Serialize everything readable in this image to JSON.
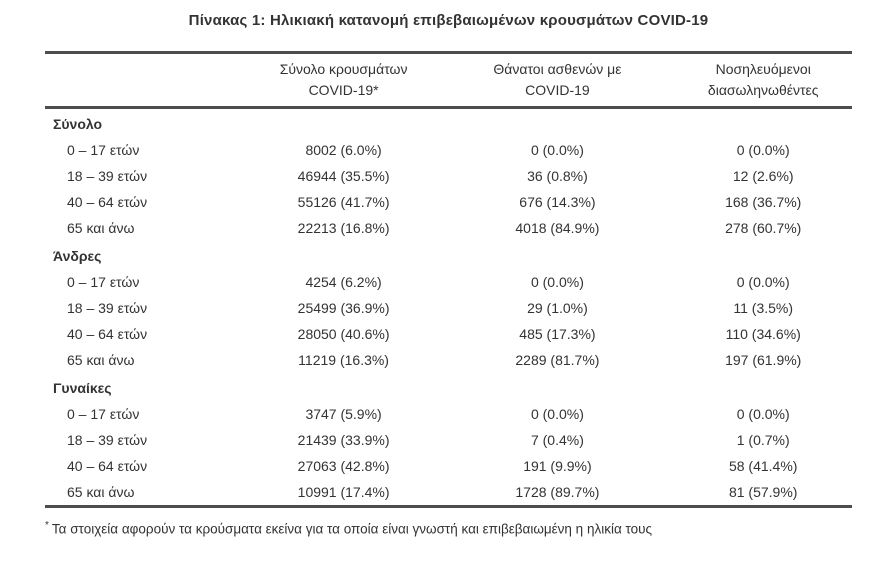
{
  "colors": {
    "text": "#333333",
    "rule": "#4d4d4d"
  },
  "title": "Πίνακας 1: Ηλικιακή κατανομή επιβεβαιωμένων κρουσμάτων COVID-19",
  "table": {
    "column_headers": [
      {
        "line1": "Σύνολο κρουσμάτων",
        "line2": "COVID-19*"
      },
      {
        "line1": "Θάνατοι ασθενών με",
        "line2": "COVID-19"
      },
      {
        "line1": "Νοσηλευόμενοι",
        "line2": "διασωληνωθέντες"
      }
    ],
    "sections": [
      {
        "name": "Σύνολο",
        "rows": [
          {
            "label": "0 – 17 ετών",
            "cases": "8002 (6.0%)",
            "deaths": "0 (0.0%)",
            "intubated": "0 (0.0%)"
          },
          {
            "label": "18 – 39 ετών",
            "cases": "46944 (35.5%)",
            "deaths": "36 (0.8%)",
            "intubated": "12 (2.6%)"
          },
          {
            "label": "40 – 64 ετών",
            "cases": "55126 (41.7%)",
            "deaths": "676 (14.3%)",
            "intubated": "168 (36.7%)"
          },
          {
            "label": "65 και άνω",
            "cases": "22213 (16.8%)",
            "deaths": "4018 (84.9%)",
            "intubated": "278 (60.7%)"
          }
        ]
      },
      {
        "name": "Άνδρες",
        "rows": [
          {
            "label": "0 – 17 ετών",
            "cases": "4254 (6.2%)",
            "deaths": "0 (0.0%)",
            "intubated": "0 (0.0%)"
          },
          {
            "label": "18 – 39 ετών",
            "cases": "25499 (36.9%)",
            "deaths": "29 (1.0%)",
            "intubated": "11 (3.5%)"
          },
          {
            "label": "40 – 64 ετών",
            "cases": "28050 (40.6%)",
            "deaths": "485 (17.3%)",
            "intubated": "110 (34.6%)"
          },
          {
            "label": "65 και άνω",
            "cases": "11219 (16.3%)",
            "deaths": "2289 (81.7%)",
            "intubated": "197 (61.9%)"
          }
        ]
      },
      {
        "name": "Γυναίκες",
        "rows": [
          {
            "label": "0 – 17 ετών",
            "cases": "3747 (5.9%)",
            "deaths": "0 (0.0%)",
            "intubated": "0 (0.0%)"
          },
          {
            "label": "18 – 39 ετών",
            "cases": "21439 (33.9%)",
            "deaths": "7 (0.4%)",
            "intubated": "1 (0.7%)"
          },
          {
            "label": "40 – 64 ετών",
            "cases": "27063 (42.8%)",
            "deaths": "191 (9.9%)",
            "intubated": "58 (41.4%)"
          },
          {
            "label": "65 και άνω",
            "cases": "10991 (17.4%)",
            "deaths": "1728 (89.7%)",
            "intubated": "81 (57.9%)"
          }
        ]
      }
    ],
    "footnote_marker": "*",
    "footnote": "Τα στοιχεία αφορούν τα κρούσματα εκείνα για τα οποία είναι γνωστή και επιβεβαιωμένη η ηλικία τους"
  }
}
